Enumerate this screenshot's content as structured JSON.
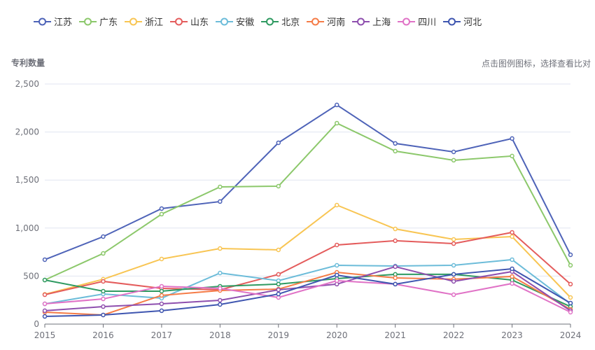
{
  "hint": "点击图例图标，选择查看比对",
  "chart_data": {
    "type": "line",
    "title": "",
    "xlabel": "",
    "ylabel": "专利数量",
    "ylim": [
      0,
      2500
    ],
    "yticks": [
      "0",
      "500",
      "1,000",
      "1,500",
      "2,000",
      "2,500"
    ],
    "ytick_values": [
      0,
      500,
      1000,
      1500,
      2000,
      2500
    ],
    "x": [
      "2015",
      "2016",
      "2017",
      "2018",
      "2019",
      "2020",
      "2021",
      "2022",
      "2023",
      "2024"
    ],
    "grid": true,
    "legend_position": "top-left",
    "series": [
      {
        "name": "江苏",
        "color": "#4e63b8",
        "values": [
          671,
          911,
          1203,
          1276,
          1888,
          2282,
          1881,
          1793,
          1932,
          722
        ]
      },
      {
        "name": "广东",
        "color": "#8cc86b",
        "values": [
          459,
          736,
          1145,
          1429,
          1436,
          2092,
          1801,
          1706,
          1750,
          612
        ]
      },
      {
        "name": "浙江",
        "color": "#f8c553",
        "values": [
          310,
          467,
          678,
          787,
          773,
          1239,
          991,
          882,
          911,
          277
        ]
      },
      {
        "name": "山东",
        "color": "#e45c5c",
        "values": [
          306,
          445,
          372,
          357,
          518,
          824,
          868,
          838,
          955,
          416
        ]
      },
      {
        "name": "安徽",
        "color": "#6cbcd9",
        "values": [
          211,
          313,
          270,
          532,
          452,
          612,
          605,
          612,
          671,
          211
        ]
      },
      {
        "name": "北京",
        "color": "#2f9a61",
        "values": [
          459,
          343,
          343,
          394,
          416,
          474,
          518,
          518,
          459,
          182
        ]
      },
      {
        "name": "河南",
        "color": "#f57c47",
        "values": [
          124,
          95,
          299,
          350,
          364,
          539,
          481,
          467,
          496,
          153
        ]
      },
      {
        "name": "上海",
        "color": "#8e4fae",
        "values": [
          139,
          182,
          211,
          248,
          357,
          416,
          598,
          445,
          547,
          139
        ]
      },
      {
        "name": "四川",
        "color": "#e072c6",
        "values": [
          211,
          262,
          394,
          372,
          277,
          452,
          416,
          306,
          423,
          124
        ]
      },
      {
        "name": "河北",
        "color": "#3f56b0",
        "values": [
          80,
          95,
          139,
          204,
          313,
          510,
          416,
          518,
          576,
          219
        ]
      }
    ]
  }
}
